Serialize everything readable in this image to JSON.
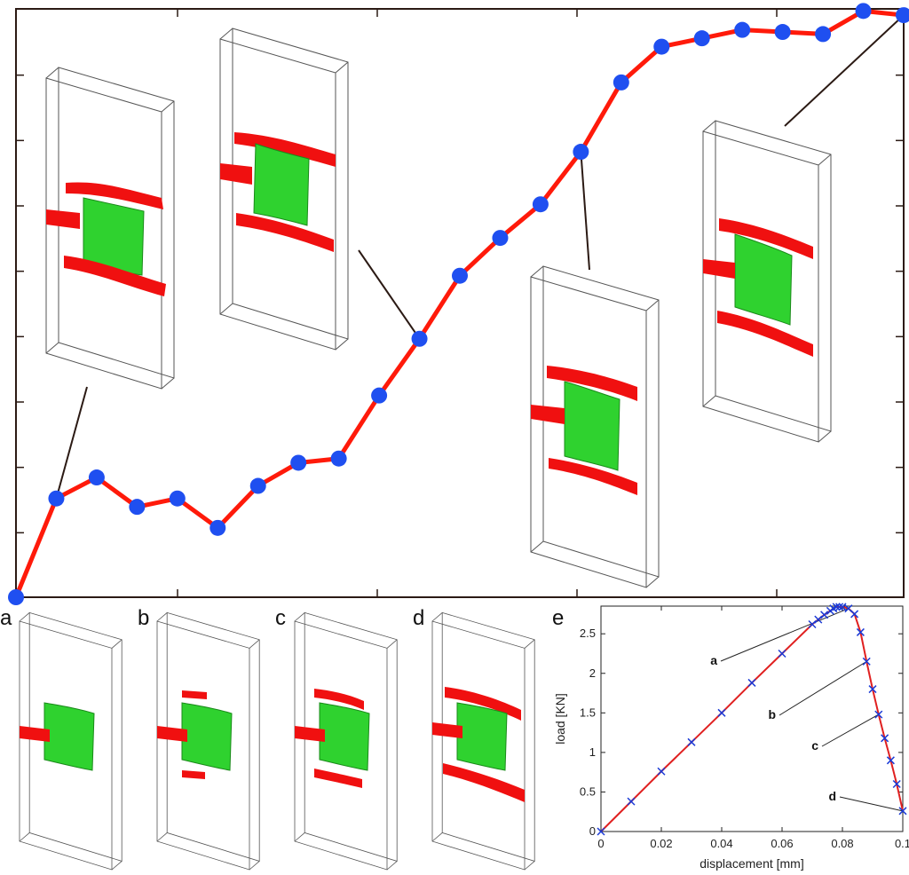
{
  "colors": {
    "curve_main": "#ff1a0a",
    "marker_main": "#1f4ff0",
    "curve_small": "#e02020",
    "marker_small": "#1a3ad6",
    "green_material": "#2fd22f",
    "red_material": "#f01010",
    "box_outline": "#555555"
  },
  "panel_labels": [
    "a",
    "b",
    "c",
    "d",
    "e"
  ],
  "chart_data": [
    {
      "type": "line",
      "panel": "main",
      "title": "",
      "xlabel": "",
      "ylabel": "",
      "xlim": [
        0,
        22
      ],
      "ylim": [
        0,
        2.8
      ],
      "grid": false,
      "x": [
        0,
        1,
        2,
        3,
        4,
        5,
        6,
        7,
        8,
        9,
        10,
        11,
        12,
        13,
        14,
        15,
        16,
        17,
        18,
        19,
        20,
        21,
        22
      ],
      "series": [
        {
          "name": "",
          "values": [
            0.0,
            0.47,
            0.57,
            0.43,
            0.47,
            0.33,
            0.53,
            0.64,
            0.66,
            0.96,
            1.23,
            1.53,
            1.71,
            1.87,
            2.12,
            2.45,
            2.62,
            2.66,
            2.7,
            2.69,
            2.68,
            2.79,
            2.77
          ]
        }
      ],
      "callouts": [
        {
          "x": 1,
          "target": "first-inset"
        },
        {
          "x": 10,
          "target": "second-inset"
        },
        {
          "x": 14,
          "target": "third-inset"
        },
        {
          "x": 22,
          "target": "fourth-inset"
        }
      ]
    },
    {
      "type": "line",
      "panel": "e",
      "title": "",
      "xlabel": "displacement [mm]",
      "ylabel": "load [KN]",
      "xlim": [
        0,
        0.1
      ],
      "ylim": [
        0,
        2.85
      ],
      "xticks": [
        "0",
        "0.02",
        "0.04",
        "0.06",
        "0.08",
        "0.1"
      ],
      "yticks": [
        "0",
        "0.5",
        "1",
        "1.5",
        "2",
        "2.5"
      ],
      "grid": false,
      "x": [
        0,
        0.01,
        0.02,
        0.03,
        0.04,
        0.05,
        0.06,
        0.07,
        0.072,
        0.074,
        0.076,
        0.077,
        0.078,
        0.079,
        0.08,
        0.082,
        0.084,
        0.086,
        0.088,
        0.09,
        0.092,
        0.094,
        0.096,
        0.098,
        0.1
      ],
      "series": [
        {
          "name": "",
          "values": [
            0,
            0.38,
            0.76,
            1.13,
            1.5,
            1.88,
            2.25,
            2.62,
            2.68,
            2.74,
            2.79,
            2.82,
            2.84,
            2.84,
            2.84,
            2.82,
            2.75,
            2.52,
            2.15,
            1.8,
            1.48,
            1.18,
            0.9,
            0.6,
            0.26
          ]
        }
      ],
      "annotations": [
        {
          "label": "a",
          "x": 0.082
        },
        {
          "label": "b",
          "x": 0.088
        },
        {
          "label": "c",
          "x": 0.092
        },
        {
          "label": "d",
          "x": 0.1
        }
      ]
    }
  ]
}
